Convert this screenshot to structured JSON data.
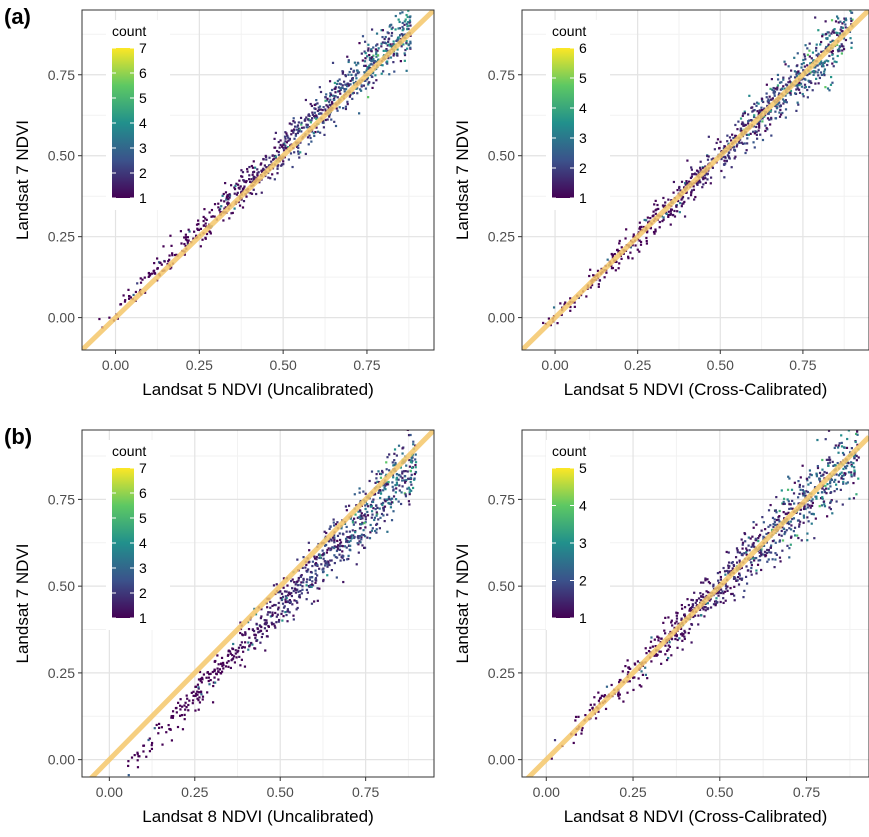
{
  "figure": {
    "panel_labels": [
      "(a)",
      "(b)"
    ],
    "identity_line_color": "#f5c76a",
    "point_palette": [
      "#440154",
      "#3b528b",
      "#21908c",
      "#5dc863",
      "#fde725"
    ]
  },
  "chart_data": [
    {
      "type": "scatter",
      "subtype": "binned-density (hexbin)",
      "panel": "(a)",
      "xlabel": "Landsat 5 NDVI (Uncalibrated)",
      "ylabel": "Landsat 7 NDVI",
      "xlim": [
        -0.1,
        0.95
      ],
      "ylim": [
        -0.1,
        0.95
      ],
      "xticks": [
        "0.00",
        "0.25",
        "0.50",
        "0.75"
      ],
      "yticks": [
        "0.00",
        "0.25",
        "0.50",
        "0.75"
      ],
      "xtick_values": [
        0,
        0.25,
        0.5,
        0.75
      ],
      "ytick_values": [
        0,
        0.25,
        0.5,
        0.75
      ],
      "grid": true,
      "legend": {
        "title": "count",
        "labels": [
          "1",
          "2",
          "3",
          "4",
          "5",
          "6",
          "7"
        ],
        "min": 1,
        "max": 7,
        "placement": "top-left inside"
      },
      "reference_line": {
        "slope": 1,
        "intercept": 0,
        "color": "#f5c76a"
      },
      "cloud": {
        "x_range": [
          -0.05,
          0.88
        ],
        "fit_slope": 1.0,
        "fit_intercept": 0.02,
        "spread": 0.03,
        "n_points": 900,
        "seed": 11
      }
    },
    {
      "type": "scatter",
      "subtype": "binned-density (hexbin)",
      "panel": "(a)",
      "xlabel": "Landsat 5 NDVI (Cross-Calibrated)",
      "ylabel": "Landsat 7 NDVI",
      "xlim": [
        -0.1,
        0.95
      ],
      "ylim": [
        -0.1,
        0.95
      ],
      "xticks": [
        "0.00",
        "0.25",
        "0.50",
        "0.75"
      ],
      "yticks": [
        "0.00",
        "0.25",
        "0.50",
        "0.75"
      ],
      "xtick_values": [
        0,
        0.25,
        0.5,
        0.75
      ],
      "ytick_values": [
        0,
        0.25,
        0.5,
        0.75
      ],
      "grid": true,
      "legend": {
        "title": "count",
        "labels": [
          "1",
          "2",
          "3",
          "4",
          "5",
          "6"
        ],
        "min": 1,
        "max": 6,
        "placement": "top-left inside"
      },
      "reference_line": {
        "slope": 1,
        "intercept": 0,
        "color": "#f5c76a"
      },
      "cloud": {
        "x_range": [
          -0.05,
          0.9
        ],
        "fit_slope": 1.0,
        "fit_intercept": 0.0,
        "spread": 0.03,
        "n_points": 900,
        "seed": 23
      }
    },
    {
      "type": "scatter",
      "subtype": "binned-density (hexbin)",
      "panel": "(b)",
      "xlabel": "Landsat 8 NDVI (Uncalibrated)",
      "ylabel": "Landsat 7 NDVI",
      "xlim": [
        -0.08,
        0.95
      ],
      "ylim": [
        -0.05,
        0.95
      ],
      "xticks": [
        "0.00",
        "0.25",
        "0.50",
        "0.75"
      ],
      "yticks": [
        "0.00",
        "0.25",
        "0.50",
        "0.75"
      ],
      "xtick_values": [
        0,
        0.25,
        0.5,
        0.75
      ],
      "ytick_values": [
        0,
        0.25,
        0.5,
        0.75
      ],
      "grid": true,
      "legend": {
        "title": "count",
        "labels": [
          "1",
          "2",
          "3",
          "4",
          "5",
          "6",
          "7"
        ],
        "min": 1,
        "max": 7,
        "placement": "top-left inside"
      },
      "reference_line": {
        "slope": 1,
        "intercept": 0,
        "color": "#f5c76a"
      },
      "cloud": {
        "x_range": [
          0.02,
          0.9
        ],
        "fit_slope": 1.05,
        "fit_intercept": -0.08,
        "spread": 0.035,
        "n_points": 900,
        "seed": 37
      }
    },
    {
      "type": "scatter",
      "subtype": "binned-density (hexbin)",
      "panel": "(b)",
      "xlabel": "Landsat 8 NDVI (Cross-Calibrated)",
      "ylabel": "Landsat 7 NDVI",
      "xlim": [
        -0.07,
        0.93
      ],
      "ylim": [
        -0.05,
        0.95
      ],
      "xticks": [
        "0.00",
        "0.25",
        "0.50",
        "0.75"
      ],
      "yticks": [
        "0.00",
        "0.25",
        "0.50",
        "0.75"
      ],
      "xtick_values": [
        0,
        0.25,
        0.5,
        0.75
      ],
      "ytick_values": [
        0,
        0.25,
        0.5,
        0.75
      ],
      "grid": true,
      "legend": {
        "title": "count",
        "labels": [
          "1",
          "2",
          "3",
          "4",
          "5"
        ],
        "min": 1,
        "max": 5,
        "placement": "top-left inside"
      },
      "reference_line": {
        "slope": 1,
        "intercept": 0,
        "color": "#f5c76a"
      },
      "cloud": {
        "x_range": [
          0.0,
          0.9
        ],
        "fit_slope": 1.0,
        "fit_intercept": 0.0,
        "spread": 0.035,
        "n_points": 900,
        "seed": 53
      }
    }
  ]
}
